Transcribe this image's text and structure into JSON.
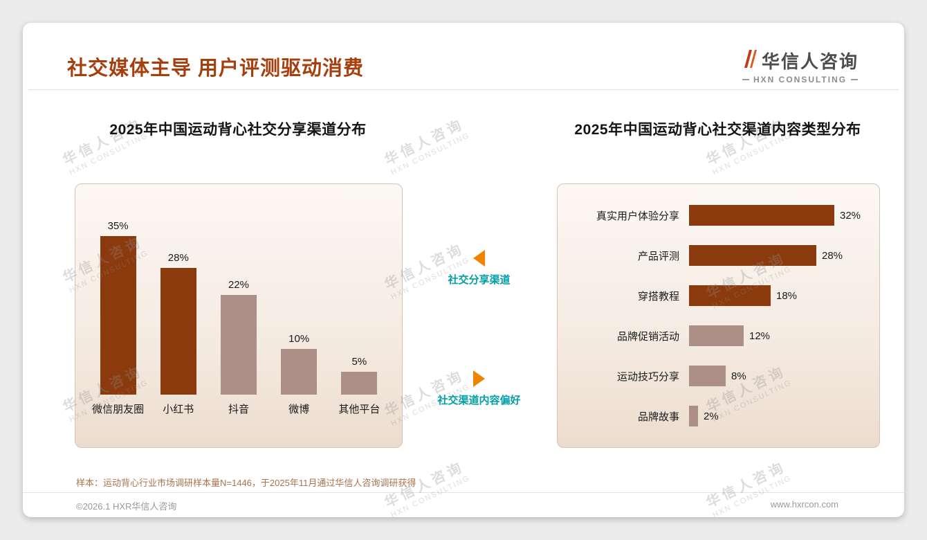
{
  "page": {
    "title": "社交媒体主导 用户评测驱动消费",
    "note": "样本：运动背心行业市场调研样本量N=1446，于2025年11月通过华信人咨询调研获得",
    "footer_left": "©2026.1 HXR华信人咨询",
    "footer_right": "www.hxrcon.com"
  },
  "logo": {
    "name": "华信人咨询",
    "subtitle": "HXN CONSULTING"
  },
  "watermark": {
    "line1": "华信人咨询",
    "line2": "HXN CONSULTING"
  },
  "connectors": [
    {
      "label": "社交分享渠道",
      "direction": "left"
    },
    {
      "label": "社交渠道内容偏好",
      "direction": "right"
    }
  ],
  "colors": {
    "title": "#A5400E",
    "dark_bar": "#8B3A0E",
    "light_bar": "#AC9088",
    "teal_label": "#00A0A6",
    "orange_arrow": "#F08300"
  },
  "chart_data": [
    {
      "type": "bar",
      "title": "2025年中国运动背心社交分享渠道分布",
      "categories": [
        "微信朋友圈",
        "小红书",
        "抖音",
        "微博",
        "其他平台"
      ],
      "values": [
        35,
        28,
        22,
        10,
        5
      ],
      "unit": "%",
      "bar_tones": [
        "dark",
        "dark",
        "light",
        "light",
        "light"
      ],
      "ylim": [
        0,
        40
      ],
      "grid": false,
      "legend": "none"
    },
    {
      "type": "bar-horizontal",
      "title": "2025年中国运动背心社交渠道内容类型分布",
      "categories": [
        "真实用户体验分享",
        "产品评测",
        "穿搭教程",
        "品牌促销活动",
        "运动技巧分享",
        "品牌故事"
      ],
      "values": [
        32,
        28,
        18,
        12,
        8,
        2
      ],
      "unit": "%",
      "bar_tones": [
        "dark",
        "dark",
        "dark",
        "light",
        "light",
        "light"
      ],
      "xlim": [
        0,
        35
      ],
      "grid": false,
      "legend": "none"
    }
  ]
}
